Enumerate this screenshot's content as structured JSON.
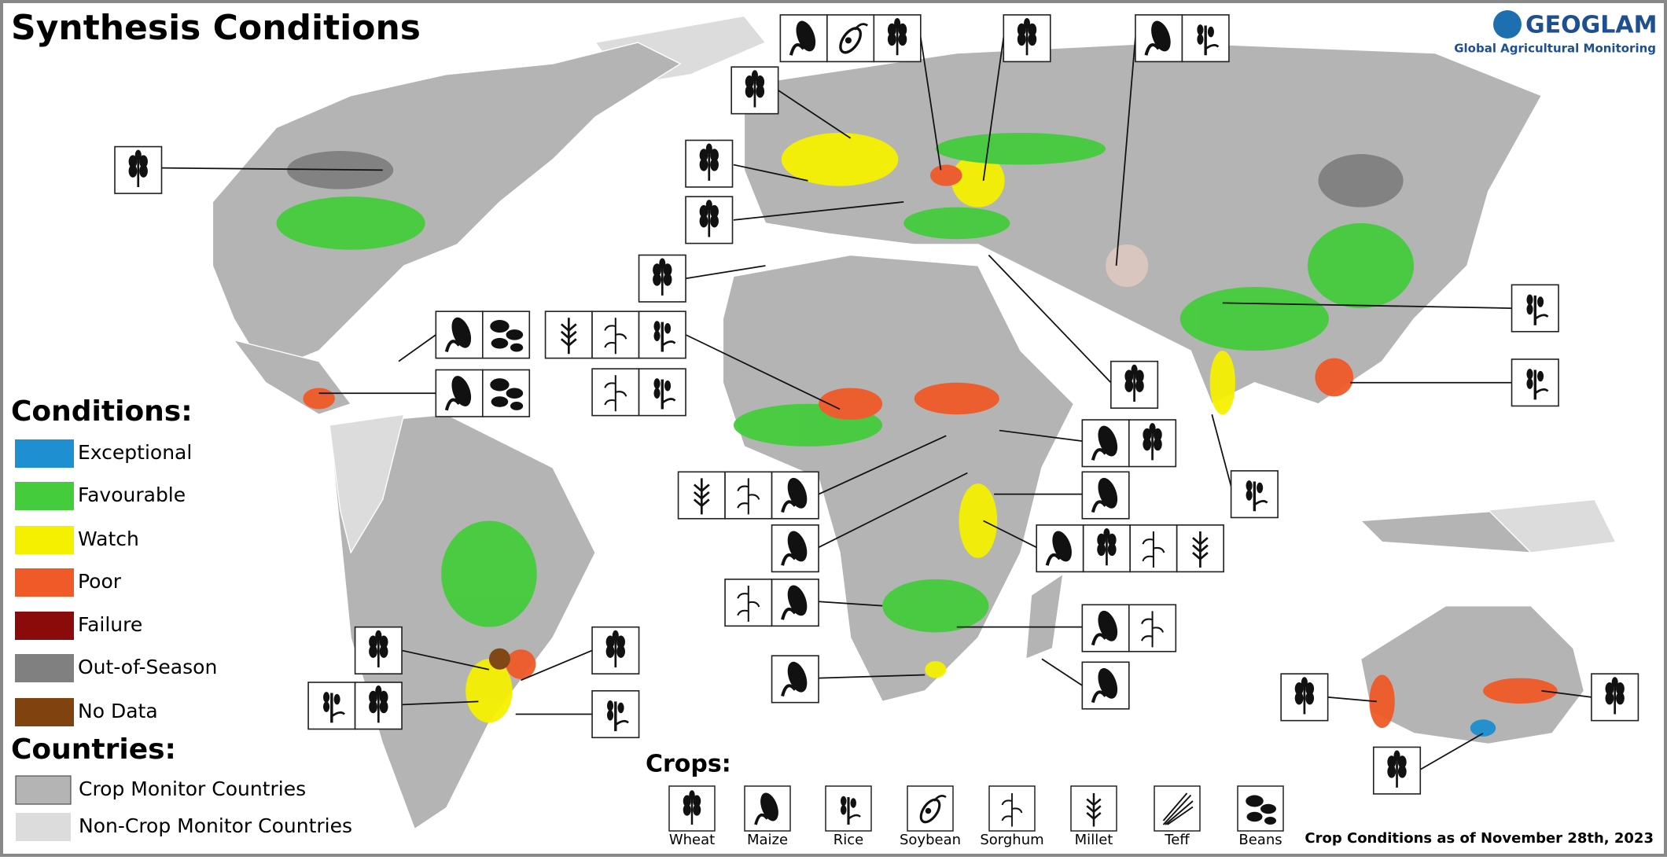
{
  "header": {
    "title": "Synthesis Conditions",
    "logo": {
      "name": "GEOGLAM",
      "tagline": "Global Agricultural Monitoring"
    }
  },
  "legend": {
    "conditions": {
      "title": "Conditions:",
      "items": [
        {
          "label": "Exceptional",
          "color": "#1e8fd0"
        },
        {
          "label": "Favourable",
          "color": "#44cc3c"
        },
        {
          "label": "Watch",
          "color": "#f5f000"
        },
        {
          "label": "Poor",
          "color": "#f05a28"
        },
        {
          "label": "Failure",
          "color": "#8b0a0a"
        },
        {
          "label": "Out-of-Season",
          "color": "#808080"
        },
        {
          "label": "No Data",
          "color": "#80420e"
        }
      ]
    },
    "countries": {
      "title": "Countries:",
      "items": [
        {
          "label": "Crop Monitor Countries",
          "color": "#b4b4b4"
        },
        {
          "label": "Non-Crop Monitor Countries",
          "color": "#dcdcdc"
        }
      ]
    },
    "crops": {
      "title": "Crops:",
      "items": [
        "Wheat",
        "Maize",
        "Rice",
        "Soybean",
        "Sorghum",
        "Millet",
        "Teff",
        "Beans"
      ]
    }
  },
  "footer": {
    "date_note": "Crop Conditions as of November 28th, 2023"
  }
}
